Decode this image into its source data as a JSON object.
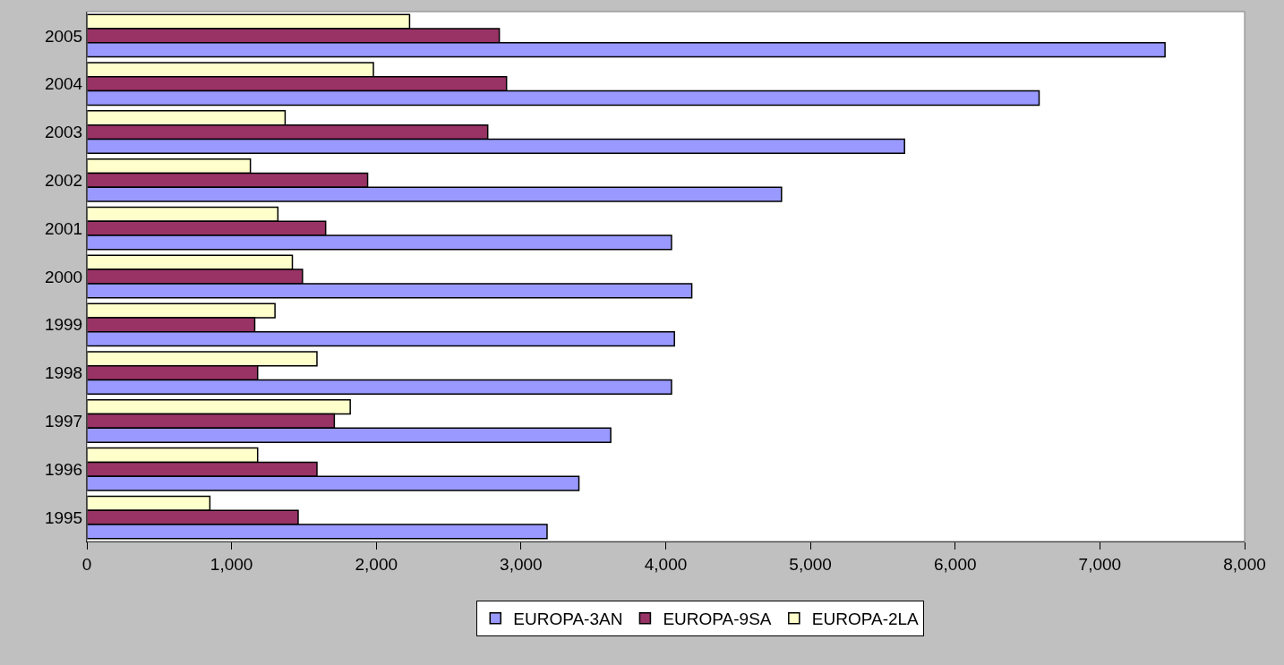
{
  "chart_data": {
    "type": "bar",
    "orientation": "horizontal",
    "categories": [
      "2005",
      "2004",
      "2003",
      "2002",
      "2001",
      "2000",
      "1999",
      "1998",
      "1997",
      "1996",
      "1995"
    ],
    "series": [
      {
        "name": "EUROPA-3AN",
        "color": "#9999ff",
        "values": [
          7450,
          6580,
          5650,
          4800,
          4040,
          4180,
          4060,
          4040,
          3620,
          3400,
          3180
        ]
      },
      {
        "name": "EUROPA-9SA",
        "color": "#993366",
        "values": [
          2850,
          2900,
          2770,
          1940,
          1650,
          1490,
          1160,
          1180,
          1710,
          1590,
          1460
        ]
      },
      {
        "name": "EUROPA-2LA",
        "color": "#ffffcc",
        "values": [
          2230,
          1980,
          1370,
          1130,
          1320,
          1420,
          1300,
          1590,
          1820,
          1180,
          850
        ]
      }
    ],
    "xlim": [
      0,
      8000
    ],
    "xticks": [
      {
        "value": 0,
        "label": "0"
      },
      {
        "value": 1000,
        "label": "1,000"
      },
      {
        "value": 2000,
        "label": "2,000"
      },
      {
        "value": 3000,
        "label": "3,000"
      },
      {
        "value": 4000,
        "label": "4,000"
      },
      {
        "value": 5000,
        "label": "5,000"
      },
      {
        "value": 6000,
        "label": "6,000"
      },
      {
        "value": 7000,
        "label": "7,000"
      },
      {
        "value": 8000,
        "label": "8,000"
      }
    ],
    "grid": false,
    "legend": "bottom"
  }
}
